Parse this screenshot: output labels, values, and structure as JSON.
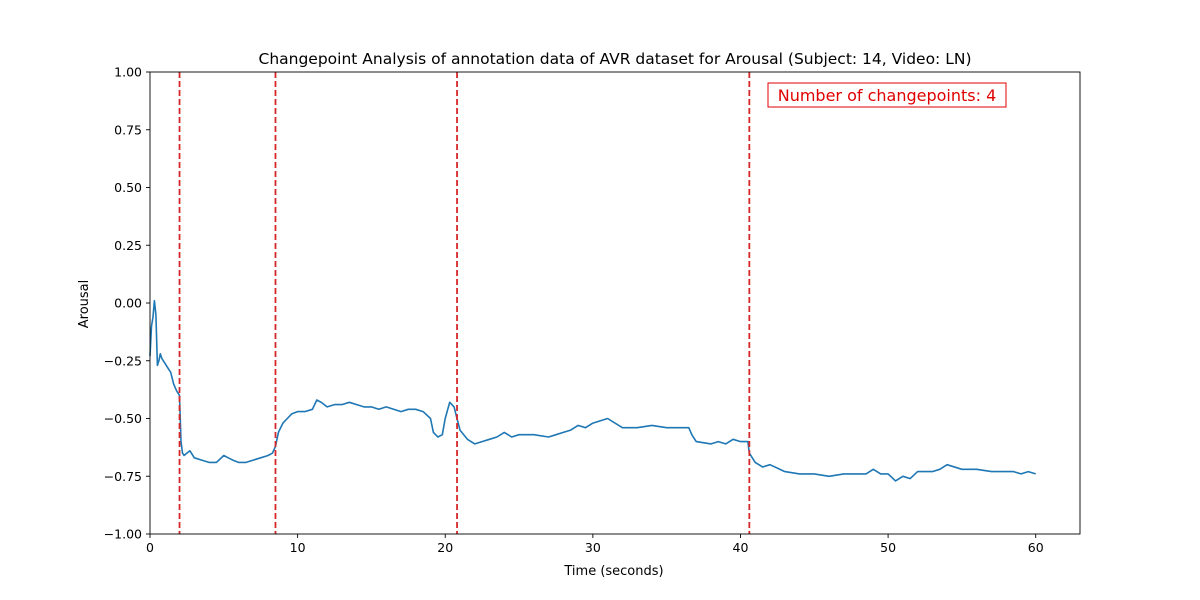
{
  "chart_data": {
    "type": "line",
    "title": "Changepoint Analysis of annotation data of AVR dataset for Arousal (Subject: 14, Video: LN)",
    "xlabel": "Time (seconds)",
    "ylabel": "Arousal",
    "xlim": [
      0,
      63
    ],
    "ylim": [
      -1.0,
      1.0
    ],
    "xticks": [
      0,
      10,
      20,
      30,
      40,
      50,
      60
    ],
    "xtick_labels": [
      "0",
      "10",
      "20",
      "30",
      "40",
      "50",
      "60"
    ],
    "yticks": [
      -1.0,
      -0.75,
      -0.5,
      -0.25,
      0.0,
      0.25,
      0.5,
      0.75,
      1.0
    ],
    "ytick_labels": [
      "−1.00",
      "−0.75",
      "−0.50",
      "−0.25",
      "0.00",
      "0.25",
      "0.50",
      "0.75",
      "1.00"
    ],
    "grid": false,
    "series": [
      {
        "color": "#1f77b4",
        "x": [
          0,
          0.1,
          0.2,
          0.3,
          0.4,
          0.5,
          0.6,
          0.7,
          0.8,
          1.0,
          1.2,
          1.4,
          1.6,
          1.8,
          2.0,
          2.1,
          2.2,
          2.3,
          2.5,
          2.7,
          3.0,
          3.5,
          4.0,
          4.5,
          5.0,
          5.3,
          5.6,
          6.0,
          6.5,
          7.0,
          7.5,
          8.0,
          8.3,
          8.5,
          8.7,
          9.0,
          9.3,
          9.6,
          10.0,
          10.5,
          11.0,
          11.3,
          11.6,
          12.0,
          12.5,
          13.0,
          13.5,
          14.0,
          14.5,
          15.0,
          15.5,
          16.0,
          16.5,
          17.0,
          17.5,
          18.0,
          18.5,
          19.0,
          19.2,
          19.5,
          19.8,
          20.0,
          20.3,
          20.6,
          20.8,
          21.0,
          21.5,
          22.0,
          22.5,
          23.0,
          23.5,
          24.0,
          24.5,
          25.0,
          26.0,
          27.0,
          27.5,
          28.0,
          28.5,
          29.0,
          29.5,
          30.0,
          31.0,
          32.0,
          33.0,
          34.0,
          35.0,
          36.0,
          36.5,
          36.7,
          37.0,
          38.0,
          38.5,
          39.0,
          39.5,
          40.0,
          40.5,
          40.6,
          41.0,
          41.5,
          42.0,
          43.0,
          44.0,
          45.0,
          46.0,
          47.0,
          48.0,
          48.5,
          49.0,
          49.5,
          50.0,
          50.5,
          51.0,
          51.5,
          52.0,
          52.5,
          53.0,
          53.5,
          54.0,
          55.0,
          56.0,
          57.0,
          58.0,
          58.5,
          59.0,
          59.5,
          60.0
        ],
        "y": [
          -0.23,
          -0.1,
          -0.06,
          0.01,
          -0.05,
          -0.27,
          -0.25,
          -0.22,
          -0.24,
          -0.26,
          -0.28,
          -0.3,
          -0.35,
          -0.38,
          -0.4,
          -0.6,
          -0.65,
          -0.66,
          -0.65,
          -0.64,
          -0.67,
          -0.68,
          -0.69,
          -0.69,
          -0.66,
          -0.67,
          -0.68,
          -0.69,
          -0.69,
          -0.68,
          -0.67,
          -0.66,
          -0.65,
          -0.62,
          -0.56,
          -0.52,
          -0.5,
          -0.48,
          -0.47,
          -0.47,
          -0.46,
          -0.42,
          -0.43,
          -0.45,
          -0.44,
          -0.44,
          -0.43,
          -0.44,
          -0.45,
          -0.45,
          -0.46,
          -0.45,
          -0.46,
          -0.47,
          -0.46,
          -0.46,
          -0.47,
          -0.5,
          -0.56,
          -0.58,
          -0.57,
          -0.5,
          -0.43,
          -0.45,
          -0.5,
          -0.55,
          -0.59,
          -0.61,
          -0.6,
          -0.59,
          -0.58,
          -0.56,
          -0.58,
          -0.57,
          -0.57,
          -0.58,
          -0.57,
          -0.56,
          -0.55,
          -0.53,
          -0.54,
          -0.52,
          -0.5,
          -0.54,
          -0.54,
          -0.53,
          -0.54,
          -0.54,
          -0.54,
          -0.57,
          -0.6,
          -0.61,
          -0.6,
          -0.61,
          -0.59,
          -0.6,
          -0.6,
          -0.65,
          -0.69,
          -0.71,
          -0.7,
          -0.73,
          -0.74,
          -0.74,
          -0.75,
          -0.74,
          -0.74,
          -0.74,
          -0.72,
          -0.74,
          -0.74,
          -0.77,
          -0.75,
          -0.76,
          -0.73,
          -0.73,
          -0.73,
          -0.72,
          -0.7,
          -0.72,
          -0.72,
          -0.73,
          -0.73,
          -0.73,
          -0.74,
          -0.73,
          -0.74
        ]
      }
    ],
    "changepoints": [
      2.0,
      8.5,
      20.8,
      40.6
    ],
    "changepoint_color": "#d62728",
    "annotation": {
      "text": "Number of changepoints: 4",
      "color": "#e00000"
    }
  }
}
